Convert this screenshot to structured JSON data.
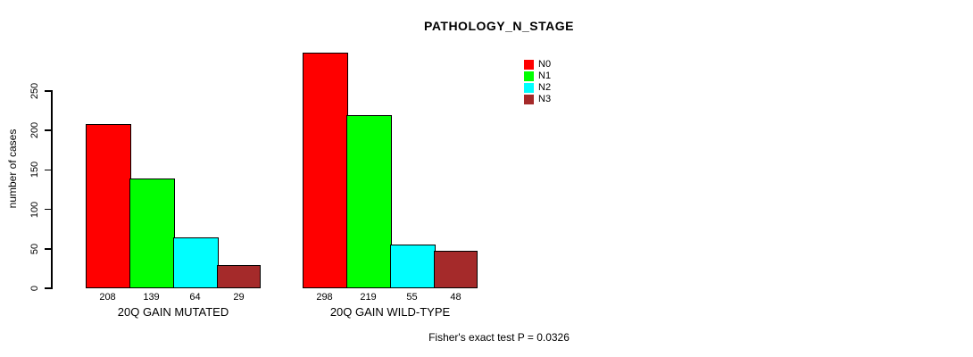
{
  "chart": {
    "title": "PATHOLOGY_N_STAGE",
    "ylabel": "number of cases",
    "footer": "Fisher's exact test P = 0.0326"
  },
  "chart_data": {
    "type": "bar",
    "title": "PATHOLOGY_N_STAGE",
    "xlabel": "",
    "ylabel": "number of cases",
    "ylim": [
      0,
      250
    ],
    "yticks": [
      0,
      50,
      100,
      150,
      200,
      250
    ],
    "grid": false,
    "legend_position": "top-right",
    "categories": [
      "20Q GAIN MUTATED",
      "20Q GAIN WILD-TYPE"
    ],
    "series": [
      {
        "name": "N0",
        "color": "#ff0000",
        "values": [
          208,
          298
        ]
      },
      {
        "name": "N1",
        "color": "#00ff00",
        "values": [
          139,
          219
        ]
      },
      {
        "name": "N2",
        "color": "#00ffff",
        "values": [
          64,
          55
        ]
      },
      {
        "name": "N3",
        "color": "#a52a2a",
        "values": [
          29,
          48
        ]
      }
    ],
    "bar_value_labels_shown": true,
    "annotation": "Fisher's exact test P = 0.0326"
  }
}
